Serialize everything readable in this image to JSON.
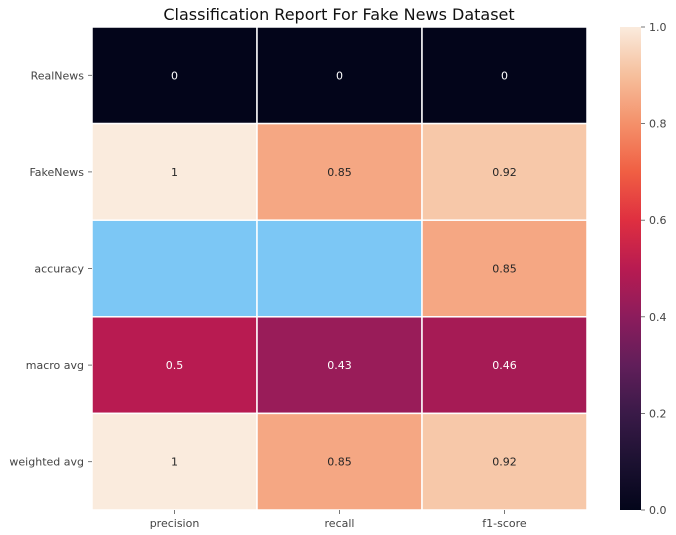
{
  "chart_data": {
    "type": "heatmap",
    "title": "Classification Report For Fake News Dataset",
    "xlabel": "",
    "ylabel": "",
    "columns": [
      "precision",
      "recall",
      "f1-score"
    ],
    "rows": [
      "RealNews",
      "FakeNews",
      "accuracy",
      "macro avg",
      "weighted avg"
    ],
    "values": [
      [
        0,
        0,
        0
      ],
      [
        1,
        0.85,
        0.92
      ],
      [
        null,
        null,
        0.85
      ],
      [
        0.5,
        0.43,
        0.46
      ],
      [
        1,
        0.85,
        0.92
      ]
    ],
    "cell_labels": [
      [
        "0",
        "0",
        "0"
      ],
      [
        "1",
        "0.85",
        "0.92"
      ],
      [
        "",
        "",
        "0.85"
      ],
      [
        "0.5",
        "0.43",
        "0.46"
      ],
      [
        "1",
        "0.85",
        "0.92"
      ]
    ],
    "missing_color": "#7cc7f5",
    "colormap": "rocket",
    "colorbar": {
      "range": [
        0,
        1
      ],
      "ticks": [
        "0.0",
        "0.2",
        "0.4",
        "0.6",
        "0.8",
        "1.0"
      ]
    },
    "grid_line_color": "#ffffff"
  }
}
